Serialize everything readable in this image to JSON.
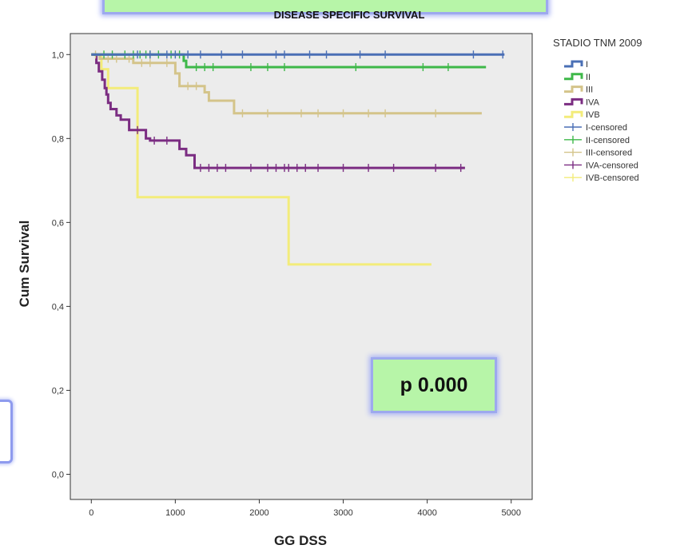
{
  "chart_data": {
    "type": "line",
    "subtype": "kaplan-meier step",
    "title": "DISEASE SPECIFIC SURVIVAL",
    "xlabel": "GG DSS",
    "ylabel": "Cum Survival",
    "xlim": [
      -250,
      5250
    ],
    "ylim": [
      -0.06,
      1.05
    ],
    "xticks": [
      0,
      1000,
      2000,
      3000,
      4000,
      5000
    ],
    "xtick_labels": [
      "0",
      "1000",
      "2000",
      "3000",
      "4000",
      "5000"
    ],
    "yticks": [
      0.0,
      0.2,
      0.4,
      0.6,
      0.8,
      1.0
    ],
    "ytick_labels": [
      "0,0",
      "0,2",
      "0,4",
      "0,6",
      "0,8",
      "1,0"
    ],
    "grid": false,
    "legend_title": "STADIO TNM 2009",
    "legend_position": "right",
    "legend_entries": [
      "I",
      "II",
      "III",
      "IVA",
      "IVB",
      "I-censored",
      "II-censored",
      "III-censored",
      "IVA-censored",
      "IVB-censored"
    ],
    "series": [
      {
        "name": "I",
        "color": "#4a6fb5",
        "points": [
          [
            0,
            1.0
          ],
          [
            4920,
            1.0
          ]
        ],
        "censored": [
          [
            550,
            1.0
          ],
          [
            700,
            1.0
          ],
          [
            900,
            1.0
          ],
          [
            1000,
            1.0
          ],
          [
            1150,
            1.0
          ],
          [
            1300,
            1.0
          ],
          [
            1550,
            1.0
          ],
          [
            1800,
            1.0
          ],
          [
            2200,
            1.0
          ],
          [
            2300,
            1.0
          ],
          [
            2600,
            1.0
          ],
          [
            2800,
            1.0
          ],
          [
            3200,
            1.0
          ],
          [
            3500,
            1.0
          ],
          [
            4550,
            1.0
          ],
          [
            4900,
            1.0
          ]
        ]
      },
      {
        "name": "II",
        "color": "#3eb849",
        "points": [
          [
            0,
            1.0
          ],
          [
            1100,
            1.0
          ],
          [
            1100,
            0.985
          ],
          [
            1130,
            0.985
          ],
          [
            1130,
            0.97
          ],
          [
            4700,
            0.97
          ]
        ],
        "censored": [
          [
            150,
            1.0
          ],
          [
            250,
            1.0
          ],
          [
            400,
            1.0
          ],
          [
            500,
            1.0
          ],
          [
            580,
            1.0
          ],
          [
            650,
            1.0
          ],
          [
            700,
            1.0
          ],
          [
            800,
            1.0
          ],
          [
            950,
            1.0
          ],
          [
            1050,
            1.0
          ],
          [
            1250,
            0.97
          ],
          [
            1350,
            0.97
          ],
          [
            1450,
            0.97
          ],
          [
            1900,
            0.97
          ],
          [
            2100,
            0.97
          ],
          [
            2300,
            0.97
          ],
          [
            3150,
            0.97
          ],
          [
            3950,
            0.97
          ],
          [
            4250,
            0.97
          ]
        ]
      },
      {
        "name": "III",
        "color": "#d4c48a",
        "points": [
          [
            0,
            1.0
          ],
          [
            100,
            1.0
          ],
          [
            100,
            0.99
          ],
          [
            500,
            0.99
          ],
          [
            500,
            0.98
          ],
          [
            1000,
            0.98
          ],
          [
            1000,
            0.955
          ],
          [
            1050,
            0.955
          ],
          [
            1050,
            0.925
          ],
          [
            1350,
            0.925
          ],
          [
            1350,
            0.91
          ],
          [
            1400,
            0.91
          ],
          [
            1400,
            0.89
          ],
          [
            1700,
            0.89
          ],
          [
            1700,
            0.86
          ],
          [
            4650,
            0.86
          ]
        ],
        "censored": [
          [
            50,
            1.0
          ],
          [
            200,
            0.99
          ],
          [
            300,
            0.99
          ],
          [
            450,
            0.99
          ],
          [
            600,
            0.98
          ],
          [
            700,
            0.98
          ],
          [
            900,
            0.98
          ],
          [
            1150,
            0.925
          ],
          [
            1250,
            0.925
          ],
          [
            1800,
            0.86
          ],
          [
            2100,
            0.86
          ],
          [
            2500,
            0.86
          ],
          [
            2700,
            0.86
          ],
          [
            3000,
            0.86
          ],
          [
            3300,
            0.86
          ],
          [
            3500,
            0.86
          ],
          [
            4100,
            0.86
          ]
        ]
      },
      {
        "name": "IVA",
        "color": "#7b2d82",
        "points": [
          [
            0,
            1.0
          ],
          [
            60,
            1.0
          ],
          [
            60,
            0.98
          ],
          [
            90,
            0.98
          ],
          [
            90,
            0.96
          ],
          [
            130,
            0.96
          ],
          [
            130,
            0.94
          ],
          [
            160,
            0.94
          ],
          [
            160,
            0.92
          ],
          [
            180,
            0.92
          ],
          [
            180,
            0.905
          ],
          [
            200,
            0.905
          ],
          [
            200,
            0.885
          ],
          [
            230,
            0.885
          ],
          [
            230,
            0.87
          ],
          [
            300,
            0.87
          ],
          [
            300,
            0.855
          ],
          [
            350,
            0.855
          ],
          [
            350,
            0.845
          ],
          [
            450,
            0.845
          ],
          [
            450,
            0.82
          ],
          [
            650,
            0.82
          ],
          [
            650,
            0.8
          ],
          [
            700,
            0.8
          ],
          [
            700,
            0.795
          ],
          [
            1050,
            0.795
          ],
          [
            1050,
            0.775
          ],
          [
            1130,
            0.775
          ],
          [
            1130,
            0.76
          ],
          [
            1230,
            0.76
          ],
          [
            1230,
            0.73
          ],
          [
            4450,
            0.73
          ]
        ],
        "censored": [
          [
            550,
            0.82
          ],
          [
            750,
            0.795
          ],
          [
            900,
            0.795
          ],
          [
            1300,
            0.73
          ],
          [
            1400,
            0.73
          ],
          [
            1500,
            0.73
          ],
          [
            1600,
            0.73
          ],
          [
            1900,
            0.73
          ],
          [
            2100,
            0.73
          ],
          [
            2200,
            0.73
          ],
          [
            2300,
            0.73
          ],
          [
            2350,
            0.73
          ],
          [
            2450,
            0.73
          ],
          [
            2550,
            0.73
          ],
          [
            2700,
            0.73
          ],
          [
            3000,
            0.73
          ],
          [
            3300,
            0.73
          ],
          [
            3600,
            0.73
          ],
          [
            4100,
            0.73
          ],
          [
            4400,
            0.73
          ]
        ]
      },
      {
        "name": "IVB",
        "color": "#f3ec7a",
        "points": [
          [
            0,
            1.0
          ],
          [
            120,
            1.0
          ],
          [
            120,
            0.965
          ],
          [
            200,
            0.965
          ],
          [
            200,
            0.92
          ],
          [
            550,
            0.92
          ],
          [
            550,
            0.66
          ],
          [
            2350,
            0.66
          ],
          [
            2350,
            0.5
          ],
          [
            4050,
            0.5
          ]
        ],
        "censored": []
      }
    ]
  },
  "annotations": {
    "p_value": "p 0.000"
  }
}
